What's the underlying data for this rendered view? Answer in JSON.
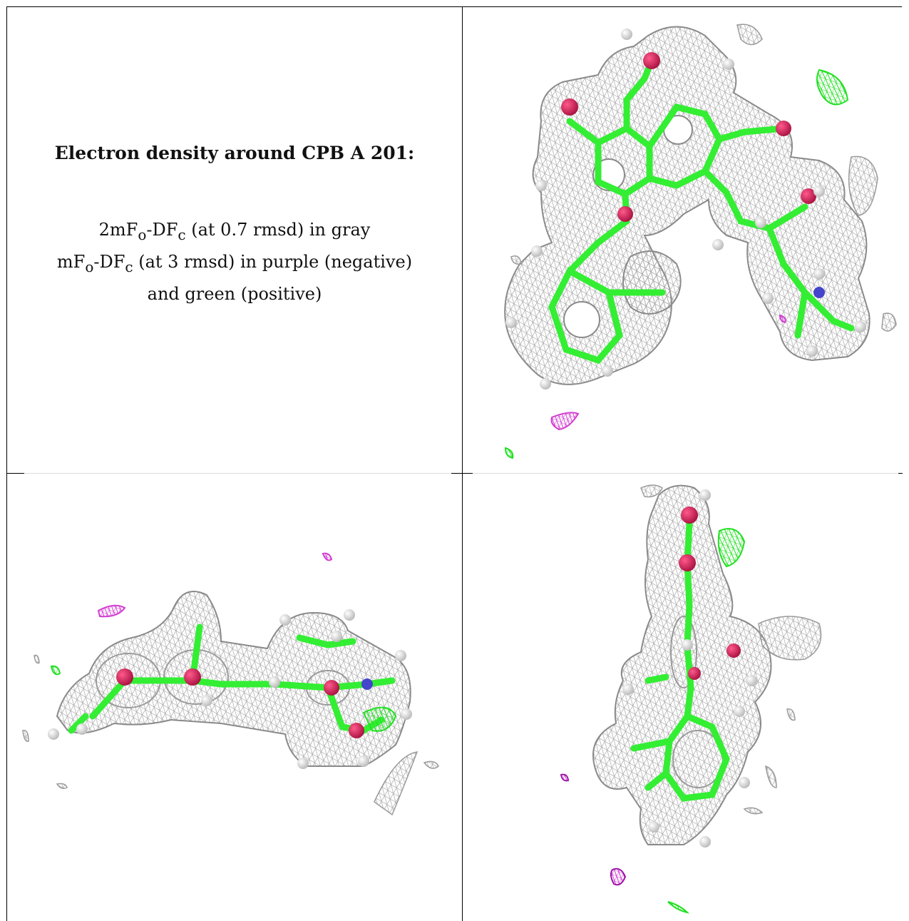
{
  "caption": {
    "title": "Electron density around CPB A 201:",
    "line1_pre": "2mF",
    "line1_sub1": "o",
    "line1_mid": "-DF",
    "line1_sub2": "c",
    "line1_post": " (at 0.7 rmsd) in gray",
    "line2_pre": "mF",
    "line2_sub1": "o",
    "line2_mid": "-DF",
    "line2_sub2": "c",
    "line2_post": " (at 3 rmsd) in purple (negative)",
    "line3": "and green (positive)"
  },
  "colors": {
    "mesh_gray": "#9a9a9a",
    "mesh_negative": "#d23fd2",
    "mesh_positive": "#22e022",
    "carbon": "#33ee33",
    "oxygen": "#e01b5f",
    "nitrogen": "#4444cc",
    "hydrogen": "#e8e8e8"
  },
  "panels": [
    {
      "view": "top-right"
    },
    {
      "view": "bottom-left"
    },
    {
      "view": "bottom-right"
    }
  ]
}
